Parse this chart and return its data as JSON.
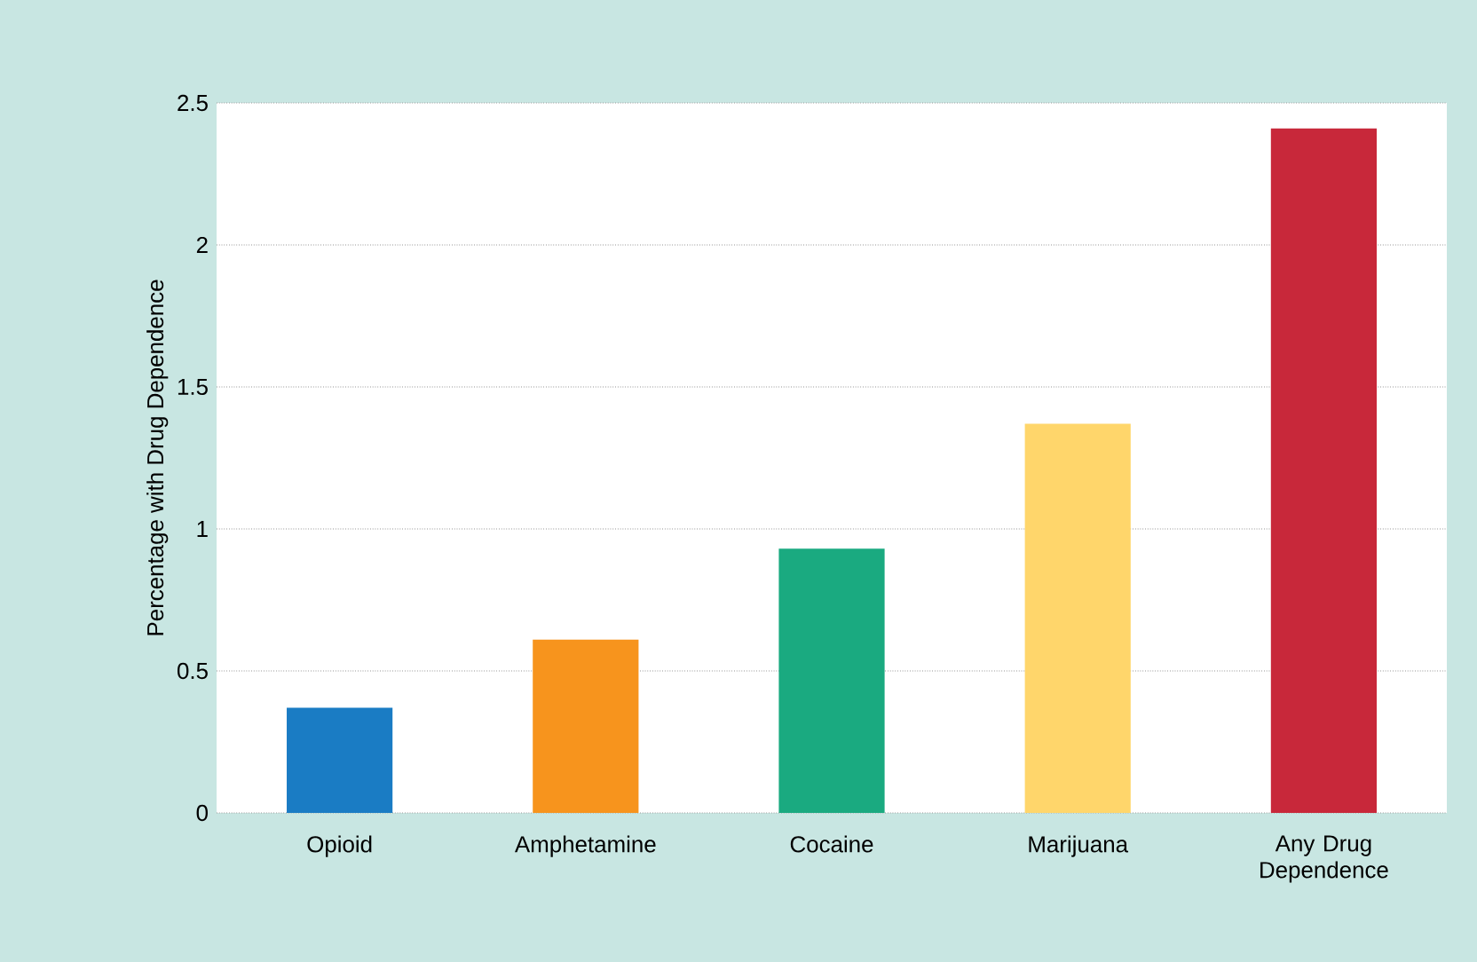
{
  "chart_data": {
    "type": "bar",
    "ylabel": "Percentage with Drug Dependence",
    "categories": [
      "Opioid",
      "Amphetamine",
      "Cocaine",
      "Marijuana",
      "Any Drug Dependence"
    ],
    "values": [
      0.37,
      0.61,
      0.93,
      1.37,
      2.41
    ],
    "colors": [
      "#1a7cc4",
      "#f7941d",
      "#1aaa80",
      "#ffd66b",
      "#c8283a"
    ],
    "ylim": [
      0,
      2.5
    ],
    "yticks": [
      0,
      0.5,
      1,
      1.5,
      2,
      2.5
    ],
    "grid": "y"
  }
}
